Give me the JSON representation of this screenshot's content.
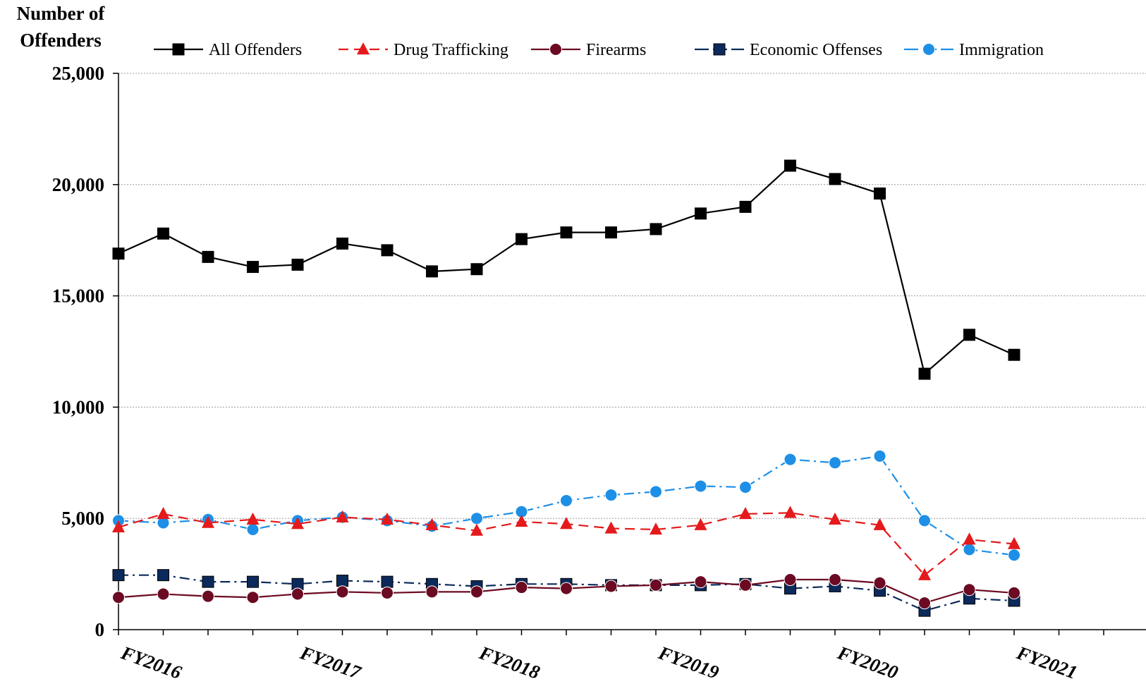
{
  "chart_data": {
    "type": "line",
    "title": "",
    "ylabel_lines": [
      "Number of",
      "Offenders"
    ],
    "xlabel": "",
    "ylim": [
      0,
      25000
    ],
    "yticks": [
      0,
      5000,
      10000,
      15000,
      20000,
      25000
    ],
    "ytick_labels": [
      "0",
      "5,000",
      "10,000",
      "15,000",
      "20,000",
      "25,000"
    ],
    "grid": "horizontal dotted",
    "legend": "top",
    "x_tick_labels": [
      "FY2016",
      "FY2017",
      "FY2018",
      "FY2019",
      "FY2020",
      "FY2021"
    ],
    "quarters_per_year": 4,
    "total_quarter_slots": 23,
    "series": [
      {
        "name": "All Offenders",
        "color": "#000000",
        "marker": "square",
        "dash": "solid",
        "values": [
          16900,
          17800,
          16750,
          16300,
          16400,
          17350,
          17050,
          16100,
          16200,
          17550,
          17850,
          17850,
          18000,
          18700,
          19000,
          20850,
          20250,
          19600,
          11500,
          13250,
          12350
        ]
      },
      {
        "name": "Drug Trafficking",
        "color": "#e41a1c",
        "marker": "triangle",
        "dash": "dashed",
        "values": [
          4600,
          5200,
          4800,
          4950,
          4750,
          5050,
          4950,
          4700,
          4450,
          4850,
          4750,
          4550,
          4500,
          4700,
          5200,
          5250,
          4950,
          4700,
          2450,
          4050,
          3850
        ]
      },
      {
        "name": "Firearms",
        "color": "#6b0a22",
        "marker": "circle",
        "dash": "solid",
        "values": [
          1450,
          1600,
          1500,
          1450,
          1600,
          1700,
          1650,
          1700,
          1700,
          1900,
          1850,
          1950,
          2000,
          2150,
          2000,
          2250,
          2250,
          2100,
          1200,
          1800,
          1650
        ]
      },
      {
        "name": "Economic Offenses",
        "color": "#0b2a5b",
        "marker": "square",
        "dash": "dashdot",
        "values": [
          2450,
          2450,
          2150,
          2150,
          2050,
          2200,
          2150,
          2050,
          1950,
          2050,
          2050,
          2000,
          2000,
          2000,
          2050,
          1850,
          1950,
          1750,
          850,
          1400,
          1300
        ]
      },
      {
        "name": "Immigration",
        "color": "#1e8fe6",
        "marker": "circle",
        "dash": "dashdot",
        "values": [
          4900,
          4800,
          4950,
          4500,
          4900,
          5050,
          4900,
          4650,
          5000,
          5300,
          5800,
          6050,
          6200,
          6450,
          6400,
          7650,
          7500,
          7800,
          4900,
          3600,
          3350
        ]
      }
    ]
  }
}
